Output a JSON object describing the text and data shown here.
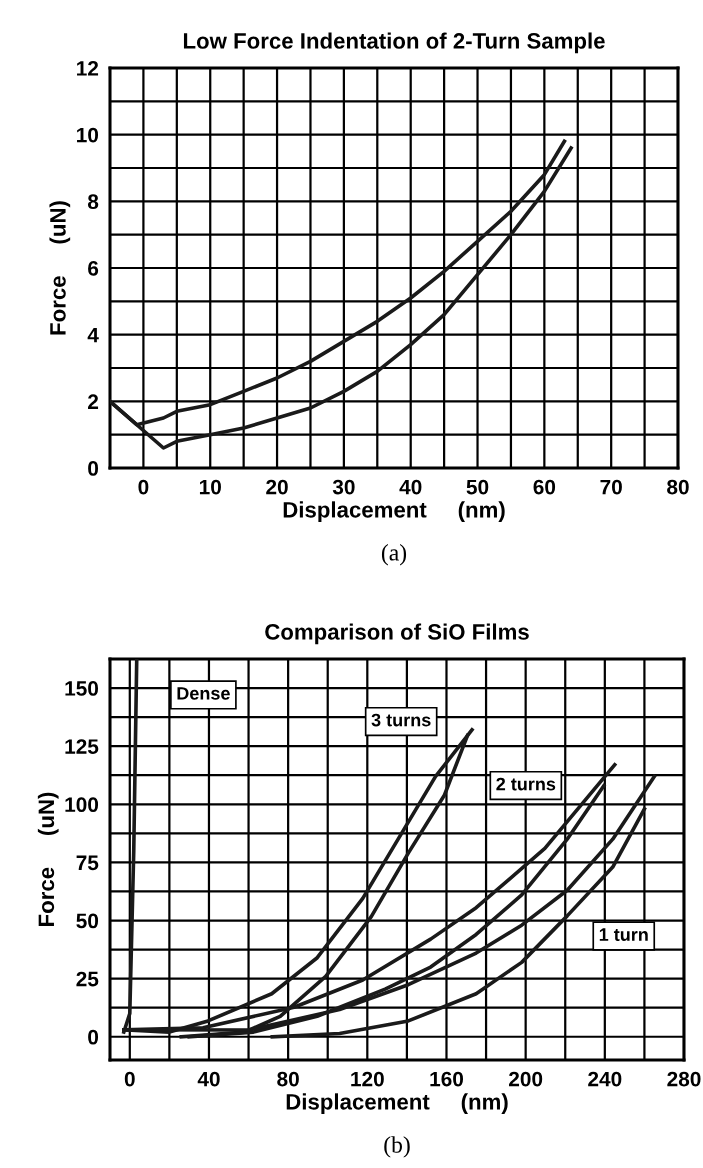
{
  "chart_data": [
    {
      "type": "line",
      "title": "Low Force Indentation of 2-Turn Sample",
      "xlabel": "Displacement     (nm)",
      "ylabel": "Force     (uN)",
      "annotations": [
        "(a)"
      ],
      "xlim": [
        -5,
        80
      ],
      "ylim": [
        0,
        12
      ],
      "xticks": [
        0,
        {
          "value": 5,
          "label": null
        },
        10,
        {
          "value": 15,
          "label": null
        },
        20,
        {
          "value": 25,
          "label": null
        },
        30,
        {
          "value": 35,
          "label": null
        },
        40,
        {
          "value": 45,
          "label": null
        },
        50,
        {
          "value": 55,
          "label": null
        },
        60,
        {
          "value": 65,
          "label": null
        },
        70,
        {
          "value": 75,
          "label": null
        },
        80
      ],
      "yticks": [
        0,
        {
          "value": 1,
          "label": null
        },
        2,
        {
          "value": 3,
          "label": null
        },
        4,
        {
          "value": 5,
          "label": null
        },
        6,
        {
          "value": 7,
          "label": null
        },
        8,
        {
          "value": 9,
          "label": null
        },
        10,
        {
          "value": 11,
          "label": null
        },
        12
      ],
      "grid": true,
      "marker": "none",
      "line_style": "solid",
      "series": [
        {
          "color": "#1a1a1a",
          "x": [
            -5,
            -1,
            3,
            5,
            10,
            15,
            20,
            25,
            30,
            35,
            40,
            45,
            50,
            55,
            60,
            63
          ],
          "values": [
            2.0,
            1.3,
            1.5,
            1.7,
            1.9,
            2.3,
            2.7,
            3.2,
            3.8,
            4.4,
            5.1,
            5.9,
            6.8,
            7.7,
            8.8,
            9.8
          ]
        },
        {
          "color": "#1a1a1a",
          "x": [
            64,
            60,
            55,
            50,
            45,
            40,
            35,
            30,
            25,
            20,
            15,
            10,
            5,
            3,
            -5
          ],
          "values": [
            9.6,
            8.3,
            7.0,
            5.8,
            4.6,
            3.7,
            2.9,
            2.3,
            1.8,
            1.5,
            1.2,
            1.0,
            0.8,
            0.6,
            2.0
          ]
        }
      ]
    },
    {
      "type": "line",
      "title": "Comparison of SiO Films",
      "xlabel": "Displacement     (nm)",
      "ylabel": "Force     (uN)",
      "annotations": [
        "(b)"
      ],
      "xlim": [
        -10,
        280
      ],
      "ylim": [
        -10,
        162.5
      ],
      "xticks": [
        0,
        {
          "value": 20,
          "label": null
        },
        40,
        {
          "value": 60,
          "label": null
        },
        80,
        {
          "value": 100,
          "label": null
        },
        120,
        {
          "value": 140,
          "label": null
        },
        160,
        {
          "value": 180,
          "label": null
        },
        200,
        {
          "value": 220,
          "label": null
        },
        240,
        {
          "value": 260,
          "label": null
        },
        280
      ],
      "yticks": [
        0,
        {
          "value": 12.5,
          "label": null
        },
        25,
        {
          "value": 37.5,
          "label": null
        },
        50,
        {
          "value": 62.5,
          "label": null
        },
        75,
        {
          "value": 87.5,
          "label": null
        },
        100,
        {
          "value": 112.5,
          "label": null
        },
        125,
        {
          "value": 137.5,
          "label": null
        },
        150
      ],
      "grid": true,
      "marker": "none",
      "line_style": "solid",
      "series": [
        {
          "name": "Dense",
          "color": "#1a1a1a",
          "x": [
            -3,
            0,
            2,
            3.5
          ],
          "values": [
            2,
            10,
            80,
            162
          ]
        },
        {
          "name": "3 turns",
          "color": "#1a1a1a",
          "x": [
            -3,
            20,
            39.5,
            71.7,
            94.7,
            117.7,
            154.5,
            172.9
          ],
          "values": [
            3,
            2,
            6.8,
            18.5,
            34,
            59.5,
            112,
            132
          ]
        },
        {
          "color": "#1a1a1a",
          "x": [
            26,
            58,
            76,
            99,
            122,
            140.7,
            159,
            170.6
          ],
          "values": [
            0,
            2,
            8.8,
            26,
            51.7,
            79,
            104,
            129.6
          ]
        },
        {
          "name": "2 turns",
          "color": "#1a1a1a",
          "x": [
            -3,
            37,
            83,
            117.7,
            152,
            175,
            209.7,
            245
          ],
          "values": [
            3,
            3.9,
            12.7,
            24.4,
            42,
            55.5,
            81,
            117
          ]
        },
        {
          "color": "#1a1a1a",
          "x": [
            30,
            62.5,
            94.7,
            129,
            152,
            175,
            198,
            221,
            239.5
          ],
          "values": [
            0,
            2,
            8.8,
            20.5,
            30,
            44,
            61,
            85,
            108
          ]
        },
        {
          "name": "1 turn",
          "color": "#1a1a1a",
          "x": [
            -3,
            60,
            106,
            140.7,
            175,
            198,
            221,
            244,
            265
          ],
          "values": [
            3,
            2.9,
            11.7,
            22.4,
            36,
            48,
            63,
            85,
            112
          ]
        },
        {
          "color": "#1a1a1a",
          "x": [
            72,
            106,
            140.7,
            175,
            198,
            221,
            244,
            260
          ],
          "values": [
            0,
            1.4,
            6.8,
            18.5,
            32,
            52,
            73,
            98
          ]
        }
      ]
    }
  ]
}
